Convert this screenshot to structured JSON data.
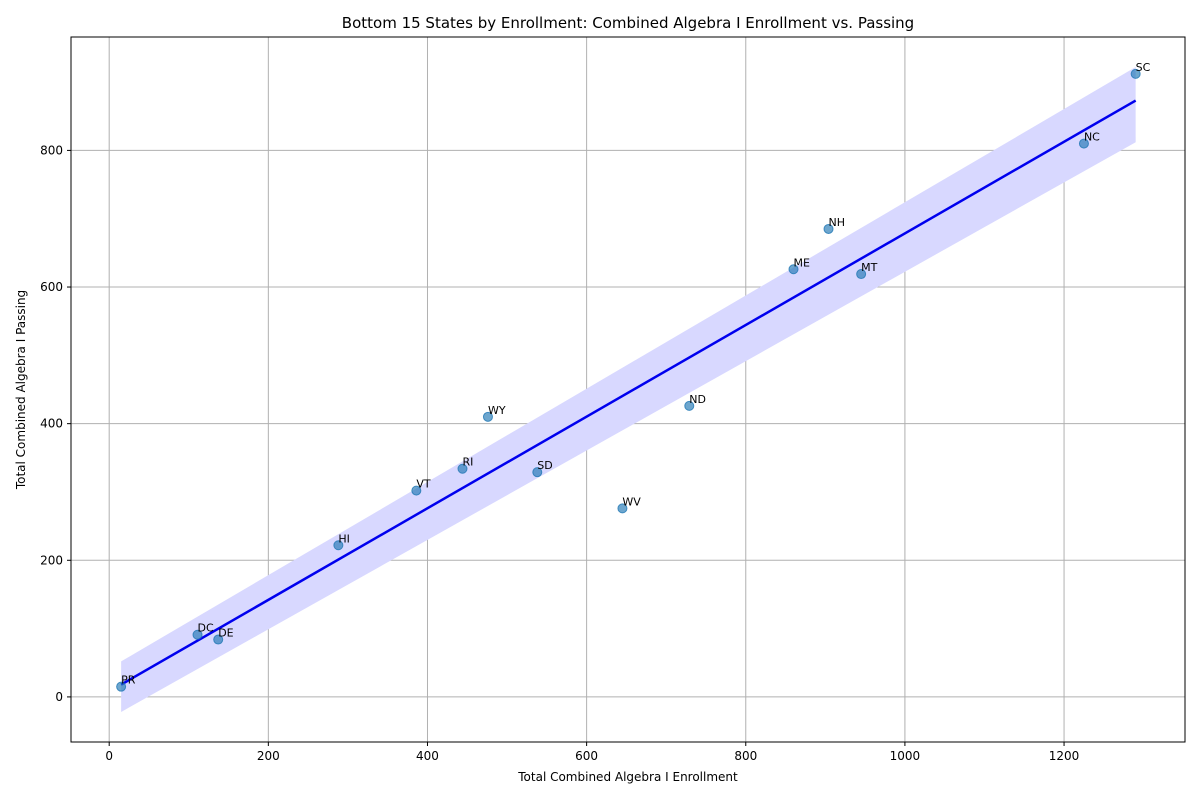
{
  "chart_data": {
    "type": "scatter",
    "title": "Bottom 15 States by Enrollment: Combined Algebra I Enrollment vs. Passing",
    "xlabel": "Total Combined Algebra I Enrollment",
    "ylabel": "Total Combined Algebra I Passing",
    "xlim": [
      -48,
      1352
    ],
    "ylim": [
      -66,
      966
    ],
    "xticks": [
      0,
      200,
      400,
      600,
      800,
      1000,
      1200
    ],
    "yticks": [
      0,
      200,
      400,
      600,
      800
    ],
    "grid": true,
    "points": [
      {
        "label": "PR",
        "x": 15,
        "y": 15
      },
      {
        "label": "DC",
        "x": 111,
        "y": 91
      },
      {
        "label": "DE",
        "x": 137,
        "y": 84
      },
      {
        "label": "HI",
        "x": 288,
        "y": 222
      },
      {
        "label": "VT",
        "x": 386,
        "y": 302
      },
      {
        "label": "RI",
        "x": 444,
        "y": 334
      },
      {
        "label": "WY",
        "x": 476,
        "y": 410
      },
      {
        "label": "SD",
        "x": 538,
        "y": 329
      },
      {
        "label": "WV",
        "x": 645,
        "y": 276
      },
      {
        "label": "ND",
        "x": 729,
        "y": 426
      },
      {
        "label": "ME",
        "x": 860,
        "y": 626
      },
      {
        "label": "NH",
        "x": 904,
        "y": 685
      },
      {
        "label": "MT",
        "x": 945,
        "y": 619
      },
      {
        "label": "NC",
        "x": 1225,
        "y": 810
      },
      {
        "label": "SC",
        "x": 1290,
        "y": 912
      }
    ],
    "regression": {
      "x_start": 15,
      "y_start": 18,
      "x_end": 1290,
      "y_end": 873,
      "ci_start": [
        -22,
        52
      ],
      "ci_end": [
        812,
        922
      ]
    },
    "colors": {
      "points": "#1f77b4",
      "line": "#0000ee",
      "band": "#d8d8ff",
      "grid": "#b0b0b0"
    }
  }
}
